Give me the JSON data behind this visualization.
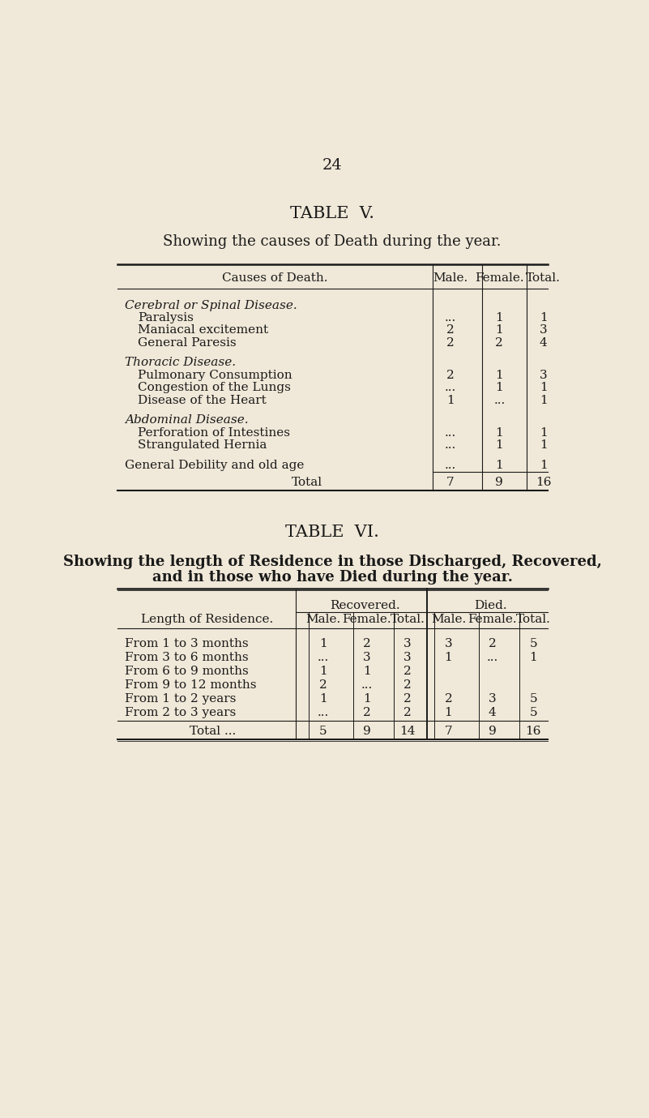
{
  "bg_color": "#f0e8d8",
  "page_num": "24",
  "table5": {
    "title": "TABLE  V.",
    "subtitle": "Showing the causes of Death during the year.",
    "sections": [
      {
        "section_header": "Cerebral or Spinal Disease.",
        "rows": [
          [
            "Paralysis",
            "...",
            "1",
            "1"
          ],
          [
            "Maniacal excitement",
            "2",
            "1",
            "3"
          ],
          [
            "General Paresis",
            "2",
            "2",
            "4"
          ]
        ]
      },
      {
        "section_header": "Thoracic Disease.",
        "rows": [
          [
            "Pulmonary Consumption",
            "2",
            "1",
            "3"
          ],
          [
            "Congestion of the Lungs",
            "...",
            "1",
            "1"
          ],
          [
            "Disease of the Heart",
            "1",
            "...",
            "1"
          ]
        ]
      },
      {
        "section_header": "Abdominal Disease.",
        "rows": [
          [
            "Perforation of Intestines",
            "...",
            "1",
            "1"
          ],
          [
            "Strangulated Hernia",
            "...",
            "1",
            "1"
          ]
        ]
      }
    ],
    "extra_row": [
      "General Debility and old age",
      "...",
      "1",
      "1"
    ],
    "total_row": [
      "Total",
      "7",
      "9",
      "16"
    ]
  },
  "table6": {
    "title": "TABLE  VI.",
    "subtitle_line1": "Showing the length of Residence in those Discharged, Recovered,",
    "subtitle_line2": "and in those who have Died during the year.",
    "group_headers": [
      "Recovered.",
      "Died."
    ],
    "rows": [
      [
        "From 1 to 3 months",
        "1",
        "2",
        "3",
        "3",
        "2",
        "5"
      ],
      [
        "From 3 to 6 months",
        "...",
        "3",
        "3",
        "1",
        "...",
        "1"
      ],
      [
        "From 6 to 9 months",
        "1",
        "1",
        "2",
        "",
        "",
        ""
      ],
      [
        "From 9 to 12 months",
        "2",
        "...",
        "2",
        "",
        "",
        ""
      ],
      [
        "From 1 to 2 years",
        "1",
        "1",
        "2",
        "2",
        "3",
        "5"
      ],
      [
        "From 2 to 3 years",
        "...",
        "2",
        "2",
        "1",
        "4",
        "5"
      ]
    ],
    "total_row": [
      "Total ...",
      "5",
      "9",
      "14",
      "7",
      "9",
      "16"
    ]
  }
}
